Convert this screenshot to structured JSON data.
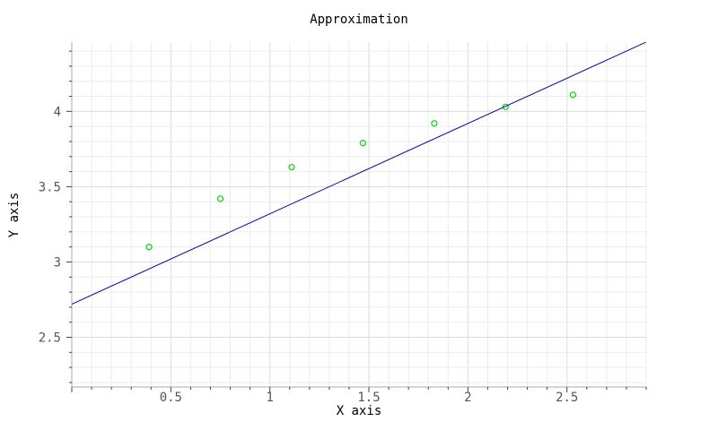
{
  "chart_data": {
    "type": "scatter",
    "title": "Approximation",
    "xlabel": "X axis",
    "ylabel": "Y axis",
    "xlim": [
      0,
      2.9
    ],
    "ylim": [
      2.17,
      4.46
    ],
    "x_ticks": [
      "0.5",
      "1",
      "1.5",
      "2",
      "2.5"
    ],
    "y_ticks": [
      "2.5",
      "3",
      "3.5",
      "4"
    ],
    "grid": true,
    "legend": "none",
    "series": [
      {
        "kind": "points",
        "marker": "open-circle",
        "color": "#00dd00",
        "x": [
          0.39,
          0.75,
          1.11,
          1.47,
          1.83,
          2.19,
          2.53
        ],
        "y": [
          3.1,
          3.42,
          3.63,
          3.79,
          3.92,
          4.03,
          4.11
        ]
      },
      {
        "kind": "line",
        "color": "#0000cc",
        "x": [
          0,
          2.9
        ],
        "y": [
          2.72,
          4.46
        ]
      }
    ]
  }
}
